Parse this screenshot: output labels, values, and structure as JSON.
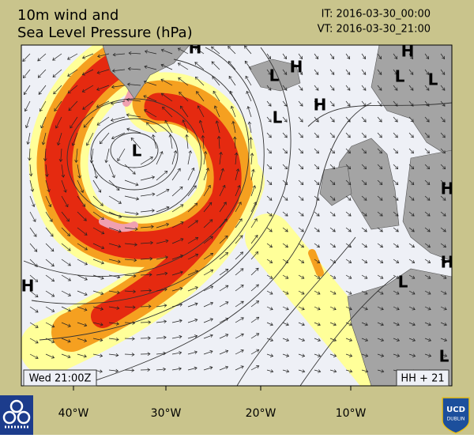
{
  "header": {
    "title_line1": "10m wind and",
    "title_line2": "Sea Level Pressure (hPa)",
    "initial_time": "IT: 2016-03-30_00:00",
    "valid_time": "VT: 2016-03-30_21:00"
  },
  "map": {
    "pressure_centers": [
      "H",
      "H",
      "L",
      "H",
      "L",
      "L",
      "H",
      "L",
      "L",
      "H",
      "H",
      "H",
      "L",
      "L"
    ],
    "lon_labels": [
      "40°W",
      "30°W",
      "20°W",
      "10°W"
    ]
  },
  "footer": {
    "day_time": "Wed 21:00Z",
    "forecast_hour": "HH + 21",
    "logo_text": "UCD",
    "logo_subtext": "DUBLIN"
  }
}
